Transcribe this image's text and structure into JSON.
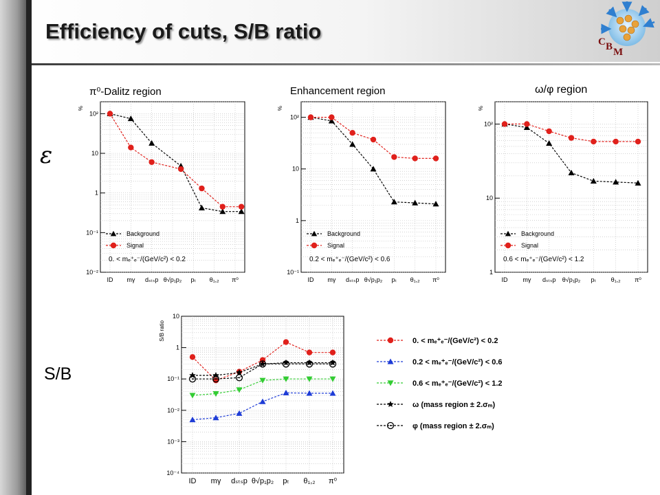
{
  "slide": {
    "title": "Efficiency of cuts, S/B ratio",
    "epsilon_label": "ε",
    "sb_label": "S/B",
    "logo_text": [
      "C",
      "B",
      "M"
    ]
  },
  "colors": {
    "background": "#000000",
    "signal": "#e0201b",
    "low": "#1e3cd6",
    "mid": "#33cc33"
  },
  "chart_data": [
    {
      "type": "line",
      "title": "π⁰-Dalitz region",
      "ylabel": "%",
      "yscale": "log",
      "ylim": [
        0.01,
        200
      ],
      "yticks": [
        {
          "v": 100,
          "t": "10²"
        },
        {
          "v": 10,
          "t": "10"
        },
        {
          "v": 1,
          "t": "1"
        },
        {
          "v": 0.1,
          "t": "10⁻¹"
        },
        {
          "v": 0.01,
          "t": "10⁻²"
        }
      ],
      "categories": [
        "ID",
        "mγ",
        "dₛₜₛp",
        "θ√p₁p₂",
        "pₜ",
        "θ₁,₂",
        "π⁰"
      ],
      "legend": {
        "position": "bottom-left",
        "entries": [
          "Background",
          "Signal"
        ],
        "cut": "0. < mₑ⁺ₑ⁻/(GeV/c²) < 0.2"
      },
      "series": [
        {
          "name": "Background",
          "x": [
            0,
            1,
            2,
            3.4,
            4.4,
            5.4,
            6.3
          ],
          "y": [
            100,
            75,
            18,
            4.8,
            0.42,
            0.34,
            0.34
          ]
        },
        {
          "name": "Signal",
          "x": [
            0,
            1,
            2,
            3.4,
            4.4,
            5.4,
            6.3
          ],
          "y": [
            100,
            14,
            6,
            4,
            1.3,
            0.45,
            0.45
          ]
        }
      ]
    },
    {
      "type": "line",
      "title": "Enhancement region",
      "ylabel": "%",
      "yscale": "log",
      "ylim": [
        0.1,
        200
      ],
      "yticks": [
        {
          "v": 100,
          "t": "10²"
        },
        {
          "v": 10,
          "t": "10"
        },
        {
          "v": 1,
          "t": "1"
        },
        {
          "v": 0.1,
          "t": "10⁻¹"
        }
      ],
      "categories": [
        "ID",
        "mγ",
        "dₛₜₛp",
        "θ√p₁p₂",
        "pₜ",
        "θ₁,₂",
        "π⁰"
      ],
      "legend": {
        "position": "bottom-left",
        "entries": [
          "Background",
          "Signal"
        ],
        "cut": "0.2 < mₑ⁺ₑ⁻/(GeV/c²) < 0.6"
      },
      "series": [
        {
          "name": "Background",
          "x": [
            0,
            1,
            2,
            3,
            4,
            5,
            6
          ],
          "y": [
            100,
            85,
            30,
            10,
            2.3,
            2.2,
            2.1
          ]
        },
        {
          "name": "Signal",
          "x": [
            0,
            1,
            2,
            3,
            4,
            5,
            6
          ],
          "y": [
            100,
            100,
            50,
            37,
            17,
            16,
            16
          ]
        }
      ]
    },
    {
      "type": "line",
      "title": "ω/φ region",
      "ylabel": "%",
      "yscale": "log",
      "ylim": [
        1,
        200
      ],
      "yticks": [
        {
          "v": 100,
          "t": "10²"
        },
        {
          "v": 10,
          "t": "10"
        },
        {
          "v": 1,
          "t": "1"
        }
      ],
      "categories": [
        "ID",
        "mγ",
        "dₛₜₛp",
        "θ√p₁p₂",
        "pₜ",
        "θ₁,₂",
        "π⁰"
      ],
      "legend": {
        "position": "bottom-left",
        "entries": [
          "Background",
          "Signal"
        ],
        "cut": "0.6 < mₑ⁺ₑ⁻/(GeV/c²) < 1.2"
      },
      "series": [
        {
          "name": "Background",
          "x": [
            0,
            1,
            2,
            3,
            4,
            5,
            6
          ],
          "y": [
            100,
            90,
            55,
            22,
            17,
            16.5,
            16
          ]
        },
        {
          "name": "Signal",
          "x": [
            0,
            1,
            2,
            3,
            4,
            5,
            6
          ],
          "y": [
            100,
            100,
            80,
            65,
            58,
            58,
            58
          ]
        }
      ]
    },
    {
      "type": "line",
      "title": "",
      "ylabel": "S/B ratio",
      "yscale": "log",
      "ylim": [
        0.0001,
        10
      ],
      "yticks": [
        {
          "v": 10,
          "t": "10"
        },
        {
          "v": 1,
          "t": "1"
        },
        {
          "v": 0.1,
          "t": "10⁻¹"
        },
        {
          "v": 0.01,
          "t": "10⁻²"
        },
        {
          "v": 0.001,
          "t": "10⁻³"
        },
        {
          "v": 0.0001,
          "t": "10⁻⁴"
        }
      ],
      "categories": [
        "ID",
        "mγ",
        "dₛₜₛp",
        "θ√p₁p₂",
        "pₜ",
        "θ₁,₂",
        "π⁰"
      ],
      "legend": {
        "position": "right"
      },
      "series": [
        {
          "name": "0.  < mₑ⁺ₑ⁻/(GeV/c²) < 0.2",
          "y": [
            0.5,
            0.09,
            0.17,
            0.4,
            1.5,
            0.7,
            0.7
          ]
        },
        {
          "name": "0.2 < mₑ⁺ₑ⁻/(GeV/c²) < 0.6",
          "y": [
            0.005,
            0.0058,
            0.008,
            0.019,
            0.036,
            0.035,
            0.035
          ]
        },
        {
          "name": "0.6 < mₑ⁺ₑ⁻/(GeV/c²) < 1.2",
          "y": [
            0.03,
            0.034,
            0.045,
            0.09,
            0.1,
            0.1,
            0.1
          ]
        },
        {
          "name": "ω (mass region ± 2.σₘ)",
          "y": [
            0.13,
            0.13,
            0.16,
            0.3,
            0.33,
            0.33,
            0.33
          ]
        },
        {
          "name": "φ (mass region ± 2.σₘ)",
          "y": [
            0.1,
            0.1,
            0.11,
            0.3,
            0.3,
            0.3,
            0.3
          ]
        }
      ]
    }
  ]
}
